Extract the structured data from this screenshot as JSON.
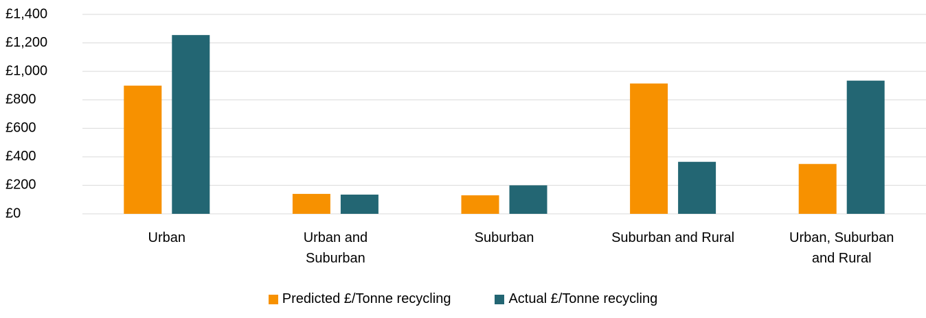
{
  "chart_data": {
    "type": "bar",
    "categories": [
      "Urban",
      "Urban and\nSuburban",
      "Suburban",
      "Suburban and Rural",
      "Urban, Suburban\nand Rural"
    ],
    "series": [
      {
        "name": "Predicted £/Tonne recycling",
        "color": "#f79100",
        "values": [
          900,
          140,
          130,
          915,
          350
        ]
      },
      {
        "name": "Actual £/Tonne recycling",
        "color": "#236673",
        "values": [
          1255,
          135,
          200,
          365,
          935
        ]
      }
    ],
    "ylim": [
      0,
      1400
    ],
    "yticks": [
      {
        "value": 0,
        "label": "£0"
      },
      {
        "value": 200,
        "label": "£200"
      },
      {
        "value": 400,
        "label": "£400"
      },
      {
        "value": 600,
        "label": "£600"
      },
      {
        "value": 800,
        "label": "£800"
      },
      {
        "value": 1000,
        "label": "£1,000"
      },
      {
        "value": 1200,
        "label": "£1,200"
      },
      {
        "value": 1400,
        "label": "£1,400"
      }
    ],
    "grid": true,
    "legend": "bottom"
  }
}
